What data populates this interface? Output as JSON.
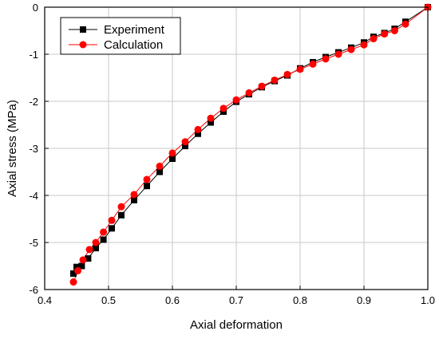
{
  "chart_data": {
    "type": "scatter",
    "title": "",
    "xlabel": "Axial deformation",
    "ylabel": "Axial stress (MPa)",
    "xlim": [
      0.4,
      1.0
    ],
    "ylim": [
      -6,
      0
    ],
    "xticks": [
      "0.4",
      "0.5",
      "0.6",
      "0.7",
      "0.8",
      "0.9",
      "1.0"
    ],
    "yticks": [
      "0",
      "-1",
      "-2",
      "-3",
      "-4",
      "-5",
      "-6"
    ],
    "grid": true,
    "legend_position": "top-left",
    "series": [
      {
        "name": "Experiment",
        "marker": "square",
        "color": "#000000",
        "x": [
          1.0,
          0.965,
          0.948,
          0.932,
          0.915,
          0.9,
          0.88,
          0.86,
          0.84,
          0.82,
          0.8,
          0.78,
          0.76,
          0.74,
          0.72,
          0.7,
          0.68,
          0.66,
          0.64,
          0.62,
          0.6,
          0.58,
          0.56,
          0.54,
          0.52,
          0.505,
          0.492,
          0.48,
          0.468,
          0.458,
          0.45,
          0.445
        ],
        "y": [
          0.0,
          -0.31,
          -0.46,
          -0.55,
          -0.63,
          -0.75,
          -0.86,
          -0.96,
          -1.06,
          -1.17,
          -1.3,
          -1.45,
          -1.57,
          -1.7,
          -1.85,
          -2.01,
          -2.22,
          -2.45,
          -2.69,
          -2.95,
          -3.22,
          -3.5,
          -3.8,
          -4.1,
          -4.42,
          -4.7,
          -4.94,
          -5.12,
          -5.34,
          -5.5,
          -5.52,
          -5.66
        ]
      },
      {
        "name": "Calculation",
        "marker": "circle",
        "color": "#ff0000",
        "x": [
          1.0,
          0.965,
          0.948,
          0.932,
          0.915,
          0.9,
          0.88,
          0.86,
          0.84,
          0.82,
          0.8,
          0.78,
          0.76,
          0.74,
          0.72,
          0.7,
          0.68,
          0.66,
          0.64,
          0.62,
          0.6,
          0.58,
          0.56,
          0.54,
          0.52,
          0.505,
          0.492,
          0.48,
          0.47,
          0.46,
          0.452,
          0.445
        ],
        "y": [
          0.0,
          -0.36,
          -0.5,
          -0.57,
          -0.67,
          -0.8,
          -0.9,
          -1.0,
          -1.1,
          -1.21,
          -1.32,
          -1.43,
          -1.55,
          -1.68,
          -1.82,
          -1.97,
          -2.15,
          -2.36,
          -2.6,
          -2.86,
          -3.1,
          -3.38,
          -3.66,
          -3.98,
          -4.24,
          -4.53,
          -4.78,
          -5.0,
          -5.15,
          -5.37,
          -5.6,
          -5.84
        ]
      }
    ]
  }
}
